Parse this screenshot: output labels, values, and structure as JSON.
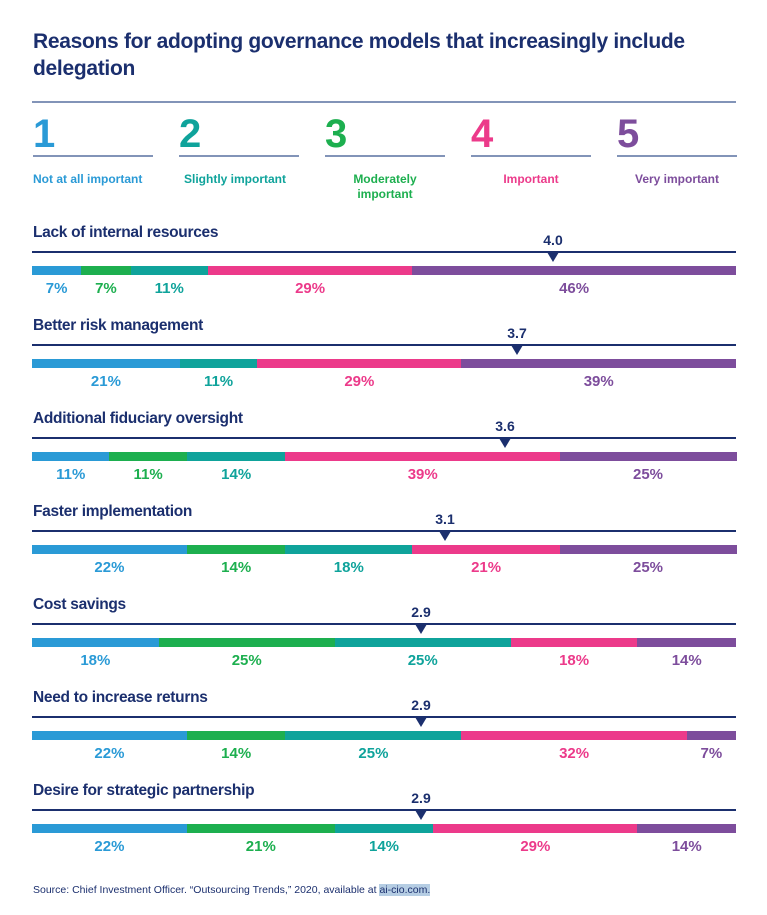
{
  "chart_data": {
    "type": "bar",
    "subtype": "stacked-horizontal-100",
    "title": "Reasons for adopting governance models that increasingly include delegation",
    "scale": [
      {
        "value": "1",
        "label": "Not at all important",
        "color": "#2a9ad6"
      },
      {
        "value": "2",
        "label": "Slightly important",
        "color": "#0fa39b"
      },
      {
        "value": "3",
        "label": "Moderately important",
        "color": "#1daf4f"
      },
      {
        "value": "4",
        "label": "Important",
        "color": "#ec3a8a"
      },
      {
        "value": "5",
        "label": "Very important",
        "color": "#7d4d9c"
      }
    ],
    "segment_colors": {
      "blue": "#2a9ad6",
      "green": "#1daf4f",
      "teal": "#0fa39b",
      "pink": "#ec3a8a",
      "purple": "#7d4d9c"
    },
    "rows": [
      {
        "label": "Lack of internal resources",
        "mean": "4.0",
        "segments": [
          {
            "c": "blue",
            "v": 7,
            "t": "7%"
          },
          {
            "c": "green",
            "v": 7,
            "t": "7%"
          },
          {
            "c": "teal",
            "v": 11,
            "t": "11%"
          },
          {
            "c": "pink",
            "v": 29,
            "t": "29%"
          },
          {
            "c": "purple",
            "v": 46,
            "t": "46%"
          }
        ]
      },
      {
        "label": "Better risk management",
        "mean": "3.7",
        "segments": [
          {
            "c": "blue",
            "v": 21,
            "t": "21%"
          },
          {
            "c": "teal",
            "v": 11,
            "t": "11%"
          },
          {
            "c": "pink",
            "v": 29,
            "t": "29%"
          },
          {
            "c": "purple",
            "v": 39,
            "t": "39%"
          }
        ]
      },
      {
        "label": "Additional fiduciary oversight",
        "mean": "3.6",
        "segments": [
          {
            "c": "blue",
            "v": 11,
            "t": "11%"
          },
          {
            "c": "green",
            "v": 11,
            "t": "11%"
          },
          {
            "c": "teal",
            "v": 14,
            "t": "14%"
          },
          {
            "c": "pink",
            "v": 39,
            "t": "39%"
          },
          {
            "c": "purple",
            "v": 25,
            "t": "25%"
          }
        ]
      },
      {
        "label": "Faster implementation",
        "mean": "3.1",
        "segments": [
          {
            "c": "blue",
            "v": 22,
            "t": "22%"
          },
          {
            "c": "green",
            "v": 14,
            "t": "14%"
          },
          {
            "c": "teal",
            "v": 18,
            "t": "18%"
          },
          {
            "c": "pink",
            "v": 21,
            "t": "21%"
          },
          {
            "c": "purple",
            "v": 25,
            "t": "25%"
          }
        ]
      },
      {
        "label": "Cost savings",
        "mean": "2.9",
        "segments": [
          {
            "c": "blue",
            "v": 18,
            "t": "18%"
          },
          {
            "c": "green",
            "v": 25,
            "t": "25%"
          },
          {
            "c": "teal",
            "v": 25,
            "t": "25%"
          },
          {
            "c": "pink",
            "v": 18,
            "t": "18%"
          },
          {
            "c": "purple",
            "v": 14,
            "t": "14%"
          }
        ]
      },
      {
        "label": "Need to increase returns",
        "mean": "2.9",
        "segments": [
          {
            "c": "blue",
            "v": 22,
            "t": "22%"
          },
          {
            "c": "green",
            "v": 14,
            "t": "14%"
          },
          {
            "c": "teal",
            "v": 25,
            "t": "25%"
          },
          {
            "c": "pink",
            "v": 32,
            "t": "32%"
          },
          {
            "c": "purple",
            "v": 7,
            "t": "7%"
          }
        ]
      },
      {
        "label": "Desire for strategic partnership",
        "mean": "2.9",
        "segments": [
          {
            "c": "blue",
            "v": 22,
            "t": "22%"
          },
          {
            "c": "green",
            "v": 21,
            "t": "21%"
          },
          {
            "c": "teal",
            "v": 14,
            "t": "14%"
          },
          {
            "c": "pink",
            "v": 29,
            "t": "29%"
          },
          {
            "c": "purple",
            "v": 14,
            "t": "14%"
          }
        ]
      }
    ]
  },
  "source": {
    "text": "Source: Chief Investment Officer. “Outsourcing Trends,” 2020, available at ",
    "link": "ai-cio.com."
  }
}
